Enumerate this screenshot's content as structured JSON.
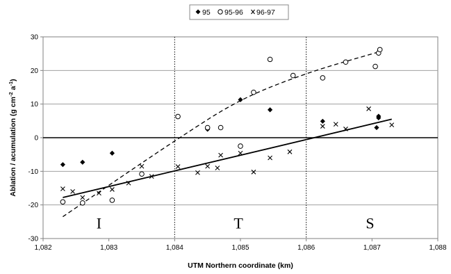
{
  "chart_data": {
    "type": "scatter",
    "title": "",
    "xlabel": "UTM Northern coordinate (km)",
    "ylabel": "Ablation / acumulation (g cm",
    "ylabel_sup1": "-2",
    "ylabel_mid": " a",
    "ylabel_sup2": "-1",
    "ylabel_end": ")",
    "xlim": [
      1082,
      1088
    ],
    "ylim": [
      -30,
      30
    ],
    "x_ticks": [
      1082,
      1083,
      1084,
      1085,
      1086,
      1087,
      1088
    ],
    "x_tick_labels": [
      "1,082",
      "1,083",
      "1,084",
      "1,085",
      "1,086",
      "1,087",
      "1,088"
    ],
    "y_ticks": [
      -30,
      -20,
      -10,
      0,
      10,
      20,
      30
    ],
    "y_tick_labels": [
      "-30",
      "-20",
      "-10",
      "0",
      "10",
      "20",
      "30"
    ],
    "grid": "horizontal",
    "legend_position": "top-center",
    "zone_boundaries": [
      1084,
      1086
    ],
    "zones": [
      {
        "label": "I",
        "x": 1082.85,
        "y": -25.5
      },
      {
        "label": "T",
        "x": 1084.97,
        "y": -25.5
      },
      {
        "label": "S",
        "x": 1086.97,
        "y": -25.5
      }
    ],
    "series": [
      {
        "name": "95",
        "marker": "diamond",
        "points": [
          [
            1082.3,
            -8.0
          ],
          [
            1082.6,
            -7.3
          ],
          [
            1083.05,
            -4.6
          ],
          [
            1084.5,
            2.5
          ],
          [
            1085.0,
            11.3
          ],
          [
            1085.45,
            8.3
          ],
          [
            1086.25,
            4.9
          ],
          [
            1087.1,
            6.4
          ],
          [
            1087.1,
            5.9
          ],
          [
            1087.07,
            3.0
          ]
        ]
      },
      {
        "name": "95-96",
        "marker": "circle",
        "points": [
          [
            1082.3,
            -19.1
          ],
          [
            1082.6,
            -19.4
          ],
          [
            1083.05,
            -18.6
          ],
          [
            1083.5,
            -10.8
          ],
          [
            1084.05,
            6.3
          ],
          [
            1084.5,
            3.0
          ],
          [
            1084.7,
            3.0
          ],
          [
            1085.0,
            -2.5
          ],
          [
            1085.2,
            13.5
          ],
          [
            1085.45,
            23.3
          ],
          [
            1085.8,
            18.5
          ],
          [
            1086.25,
            17.8
          ],
          [
            1086.6,
            22.5
          ],
          [
            1087.05,
            21.2
          ],
          [
            1087.1,
            25.2
          ],
          [
            1087.12,
            26.2
          ]
        ]
      },
      {
        "name": "96-97",
        "marker": "cross",
        "points": [
          [
            1082.3,
            -15.2
          ],
          [
            1082.45,
            -16.0
          ],
          [
            1082.6,
            -17.8
          ],
          [
            1082.85,
            -16.5
          ],
          [
            1083.05,
            -15.4
          ],
          [
            1083.3,
            -13.5
          ],
          [
            1083.5,
            -8.5
          ],
          [
            1083.65,
            -11.5
          ],
          [
            1084.05,
            -8.6
          ],
          [
            1084.35,
            -10.4
          ],
          [
            1084.5,
            -8.5
          ],
          [
            1084.65,
            -9.0
          ],
          [
            1084.7,
            -5.2
          ],
          [
            1085.0,
            -4.6
          ],
          [
            1085.2,
            -10.2
          ],
          [
            1085.45,
            -6.0
          ],
          [
            1085.75,
            -4.2
          ],
          [
            1086.25,
            3.4
          ],
          [
            1086.45,
            4.0
          ],
          [
            1086.6,
            2.6
          ],
          [
            1086.95,
            8.6
          ],
          [
            1087.3,
            3.8
          ]
        ]
      }
    ],
    "fits": [
      {
        "style": "solid",
        "kind": "linear",
        "from": [
          1082.3,
          -17.8
        ],
        "to": [
          1087.3,
          5.5
        ]
      },
      {
        "style": "dashed",
        "kind": "curve",
        "points": [
          [
            1082.3,
            -23.5
          ],
          [
            1084.0,
            -1.0
          ],
          [
            1085.0,
            11.0
          ],
          [
            1086.0,
            19.0
          ],
          [
            1087.1,
            25.5
          ]
        ]
      }
    ]
  }
}
